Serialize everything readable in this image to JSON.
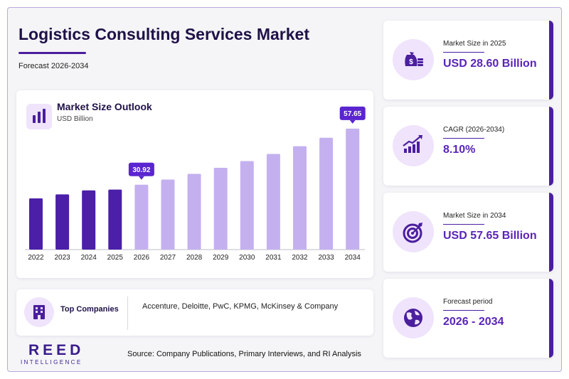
{
  "header": {
    "title": "Logistics Consulting Services Market",
    "subtitle": "Forecast 2026-2034"
  },
  "chart_data": {
    "type": "bar",
    "title": "Market Size Outlook",
    "unit": "USD Billion",
    "categories": [
      "2022",
      "2023",
      "2024",
      "2025",
      "2026",
      "2027",
      "2028",
      "2029",
      "2030",
      "2031",
      "2032",
      "2033",
      "2034"
    ],
    "values": [
      24.4,
      26.3,
      28.2,
      28.6,
      30.92,
      33.4,
      36.1,
      39.0,
      42.2,
      45.6,
      49.3,
      53.3,
      57.65
    ],
    "historical_until": "2025",
    "ylim": [
      0,
      60
    ],
    "labels": [
      {
        "category": "2026",
        "text": "30.92"
      },
      {
        "category": "2034",
        "text": "57.65"
      }
    ],
    "colors": {
      "historical": "#4b1fa8",
      "forecast": "#c4b0ef",
      "label_bg": "#5a24d0"
    }
  },
  "companies": {
    "label": "Top Companies",
    "list": "Accenture, Deloitte, PwC, KPMG, McKinsey & Company"
  },
  "kpis": [
    {
      "label": "Market Size in 2025",
      "value": "USD 28.60 Billion",
      "icon": "money-bag-icon"
    },
    {
      "label": "CAGR (2026-2034)",
      "value": "8.10%",
      "icon": "growth-chart-icon"
    },
    {
      "label": "Market Size in 2034",
      "value": "USD 57.65 Billion",
      "icon": "target-icon"
    },
    {
      "label": "Forecast period",
      "value": "2026 - 2034",
      "icon": "globe-icon"
    }
  ],
  "brand": {
    "name": "REED",
    "tagline": "INTELLIGENCE"
  },
  "source": "Source: Company Publications, Primary Interviews, and RI Analysis"
}
